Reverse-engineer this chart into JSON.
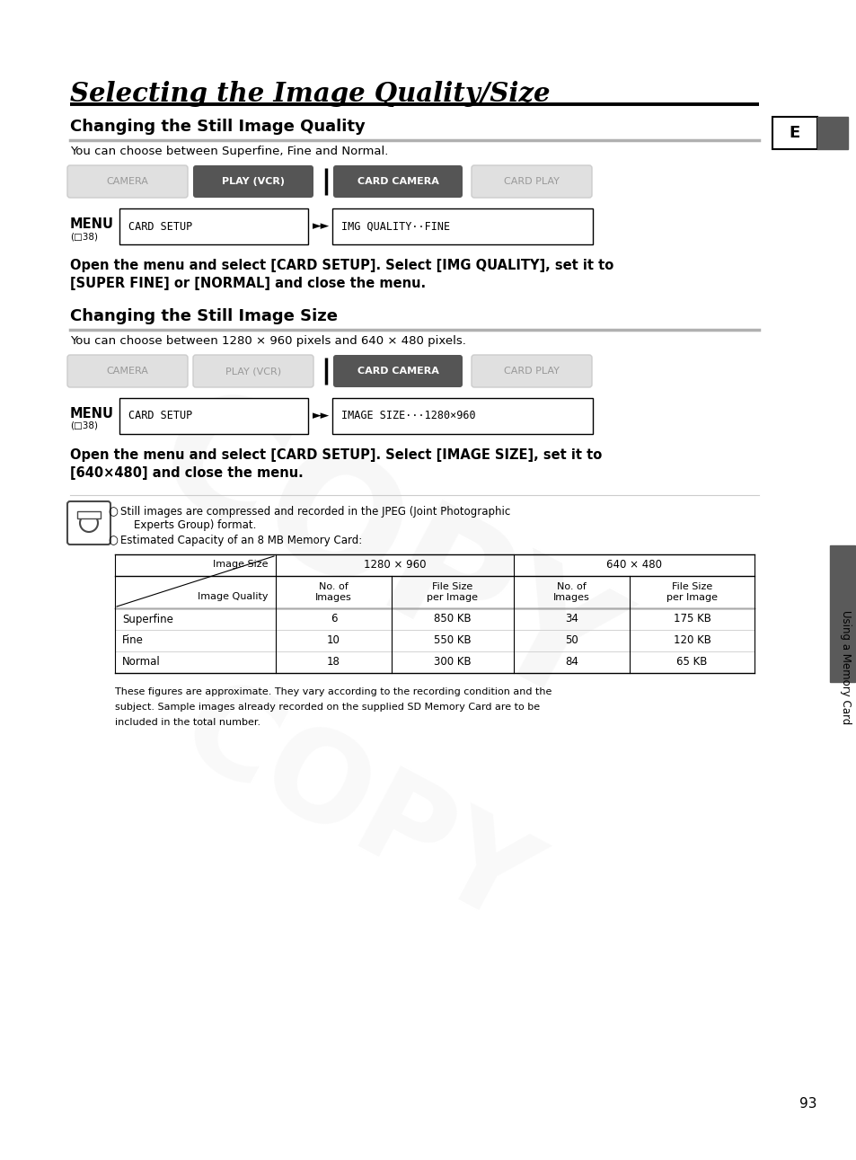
{
  "page_title": "Selecting the Image Quality/Size",
  "section1_title": "Changing the Still Image Quality",
  "section1_subtitle": "You can choose between Superfine, Fine and Normal.",
  "section2_title": "Changing the Still Image Size",
  "section2_subtitle": "You can choose between 1280 × 960 pixels and 640 × 480 pixels.",
  "tab_labels": [
    "CAMERA",
    "PLAY (VCR)",
    "CARD CAMERA",
    "CARD PLAY"
  ],
  "tab1_active": [
    1,
    2
  ],
  "tab2_active": [
    2
  ],
  "menu1_left": "CARD SETUP",
  "menu1_right": "IMG QUALITY··FINE",
  "menu2_left": "CARD SETUP",
  "menu2_right": "IMAGE SIZE···1280×960",
  "bold_text1_line1": "Open the menu and select [CARD SETUP]. Select [IMG QUALITY], set it to",
  "bold_text1_line2": "[SUPER FINE] or [NORMAL] and close the menu.",
  "bold_text2_line1": "Open the menu and select [CARD SETUP]. Select [IMAGE SIZE], set it to",
  "bold_text2_line2": "[640×480] and close the menu.",
  "note_bullet1_line1": "Still images are compressed and recorded in the JPEG (Joint Photographic",
  "note_bullet1_line2": "    Experts Group) format.",
  "note_bullet2": "Estimated Capacity of an 8 MB Memory Card:",
  "table_rows": [
    [
      "Superfine",
      "6",
      "850 KB",
      "34",
      "175 KB"
    ],
    [
      "Fine",
      "10",
      "550 KB",
      "50",
      "120 KB"
    ],
    [
      "Normal",
      "18",
      "300 KB",
      "84",
      "65 KB"
    ]
  ],
  "footnote_line1": "These figures are approximate. They vary according to the recording condition and the",
  "footnote_line2": "subject. Sample images already recorded on the supplied SD Memory Card are to be",
  "footnote_line3": "included in the total number.",
  "page_number": "93",
  "side_label": "Using a Memory Card",
  "e_label": "E",
  "bg_color": "#ffffff",
  "dark_gray": "#4a4a4a",
  "medium_gray": "#999999",
  "light_gray": "#cccccc",
  "tab_active_dark": "#555555",
  "tab_inactive_bg": "#e0e0e0",
  "tab_inactive_text": "#999999",
  "section_underline_gray": "#b0b0b0",
  "sidebar_dark": "#5a5a5a",
  "menu_ref_symbol": "(□38)"
}
